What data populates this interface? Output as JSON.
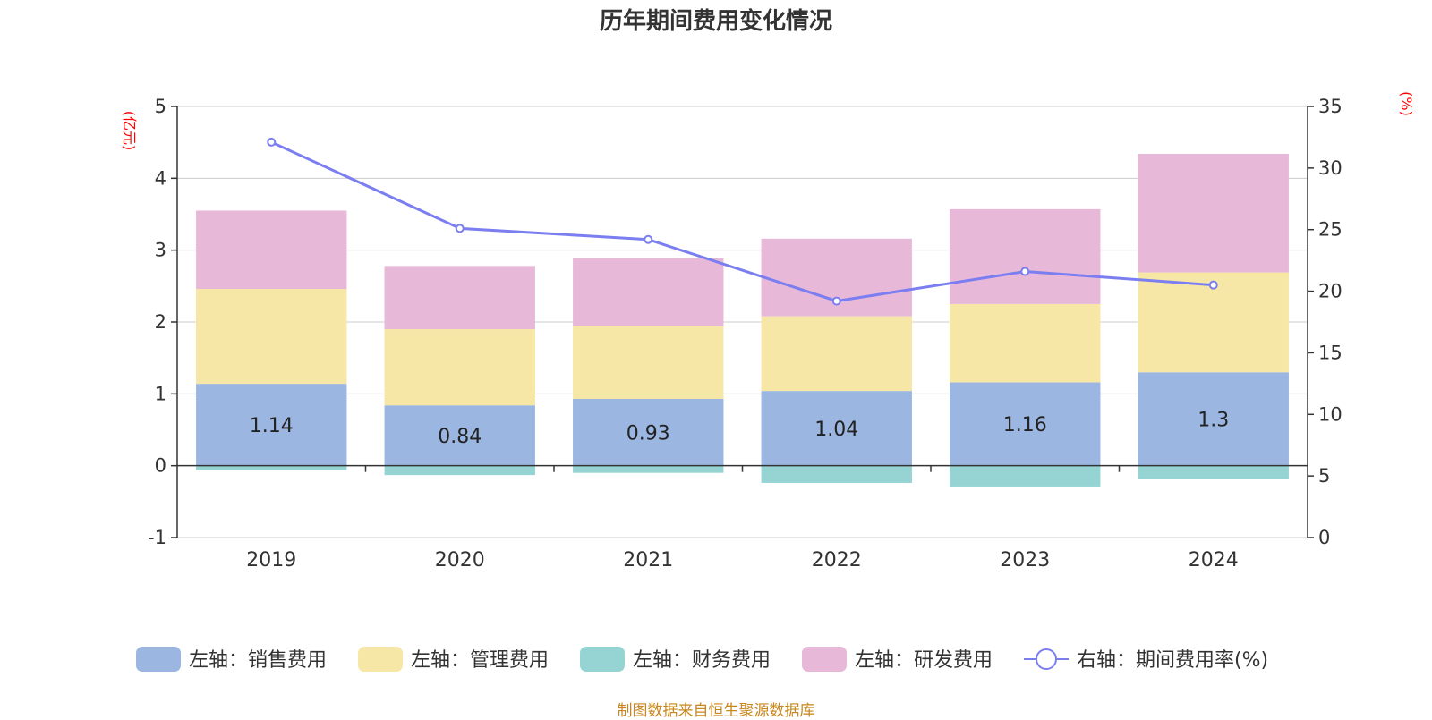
{
  "title": "历年期间费用变化情况",
  "source_text": "制图数据来自恒生聚源数据库",
  "left_axis_unit": "(亿元)",
  "right_axis_unit": "(%)",
  "colors": {
    "sales": "#9bb7e1",
    "admin": "#f7e7a6",
    "finance": "#96d4d4",
    "rd": "#e7b8d8",
    "rate_line": "#7b7ef0",
    "unit_text": "#ff0000",
    "source_text": "#c8861c"
  },
  "chart_data": {
    "type": "bar",
    "stacked": true,
    "categories": [
      "2019",
      "2020",
      "2021",
      "2022",
      "2023",
      "2024"
    ],
    "series": [
      {
        "key": "sales",
        "name": "左轴：销售费用",
        "axis": "left",
        "values": [
          1.14,
          0.84,
          0.93,
          1.04,
          1.16,
          1.3
        ],
        "labels": [
          "1.14",
          "0.84",
          "0.93",
          "1.04",
          "1.16",
          "1.3"
        ]
      },
      {
        "key": "admin",
        "name": "左轴：管理费用",
        "axis": "left",
        "values": [
          1.32,
          1.06,
          1.01,
          1.04,
          1.09,
          1.39
        ]
      },
      {
        "key": "finance",
        "name": "左轴：财务费用",
        "axis": "left",
        "values": [
          -0.06,
          -0.13,
          -0.1,
          -0.24,
          -0.29,
          -0.19
        ]
      },
      {
        "key": "rd",
        "name": "左轴：研发费用",
        "axis": "left",
        "values": [
          1.09,
          0.88,
          0.95,
          1.08,
          1.32,
          1.65
        ]
      },
      {
        "key": "rate",
        "name": "右轴：期间费用率(%)",
        "axis": "right",
        "type": "line",
        "values": [
          32.1,
          25.1,
          24.2,
          19.2,
          21.6,
          20.5
        ]
      }
    ],
    "left_axis": {
      "min": -1,
      "max": 5,
      "ticks": [
        -1,
        0,
        1,
        2,
        3,
        4,
        5
      ]
    },
    "right_axis": {
      "min": 0,
      "max": 35,
      "ticks": [
        0,
        5,
        10,
        15,
        20,
        25,
        30,
        35
      ]
    },
    "grid": true,
    "legend_position": "bottom"
  }
}
